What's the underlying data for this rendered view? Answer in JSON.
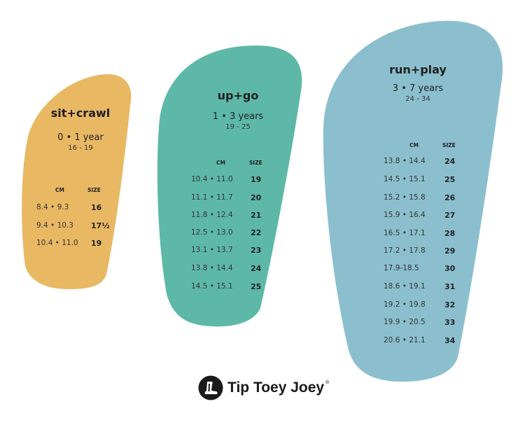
{
  "colors": {
    "sit_crawl": "#E9B863",
    "up_go": "#5DB8A8",
    "run_play": "#8BBFCE"
  },
  "column_headers": {
    "cm": "CM",
    "size": "SIZE"
  },
  "groups": [
    {
      "title": "sit+crawl",
      "age": "0 • 1 year",
      "range": "16 - 19",
      "rows": [
        [
          "8.4 • 9.3",
          "16"
        ],
        [
          "9.4 • 10.3",
          "17½"
        ],
        [
          "10.4 • 11.0",
          "19"
        ]
      ]
    },
    {
      "title": "up+go",
      "age": "1 • 3 years",
      "range": "19 - 25",
      "rows": [
        [
          "10.4 • 11.0",
          "19"
        ],
        [
          "11.1 • 11.7",
          "20"
        ],
        [
          "11.8 • 12.4",
          "21"
        ],
        [
          "12.5 • 13.0",
          "22"
        ],
        [
          "13.1 • 13.7",
          "23"
        ],
        [
          "13.8 • 14.4",
          "24"
        ],
        [
          "14.5 • 15.1",
          "25"
        ]
      ]
    },
    {
      "title": "run+play",
      "age": "3 • 7 years",
      "range": "24 - 34",
      "rows": [
        [
          "13.8 • 14.4",
          "24"
        ],
        [
          "14.5 • 15.1",
          "25"
        ],
        [
          "15.2 • 15.8",
          "26"
        ],
        [
          "15.9 • 16.4",
          "27"
        ],
        [
          "16.5 • 17.1",
          "28"
        ],
        [
          "17.2 • 17.8",
          "29"
        ],
        [
          "17.9-18.5",
          "30"
        ],
        [
          "18.6 • 19.1",
          "31"
        ],
        [
          "19.2 • 19.8",
          "32"
        ],
        [
          "19.9 • 20.5",
          "33"
        ],
        [
          "20.6 • 21.1",
          "34"
        ]
      ]
    }
  ],
  "brand": {
    "name": "Tip Toey Joey",
    "trademark": "®",
    "logo_icon": "foot-logo-icon"
  }
}
